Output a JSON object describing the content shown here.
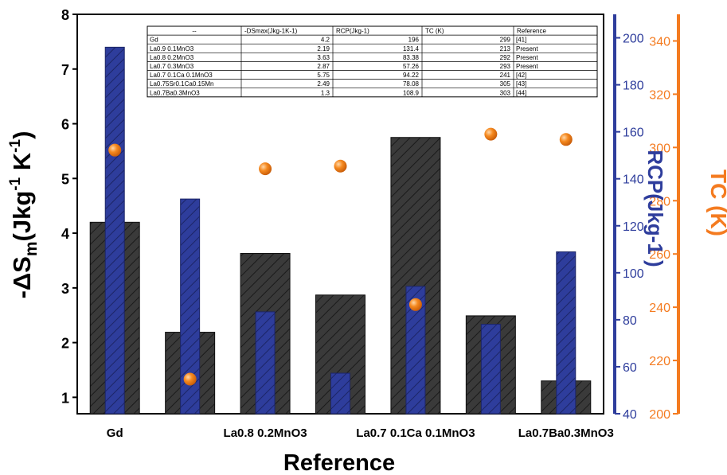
{
  "chart_data": {
    "type": "bar",
    "xlabel": "Reference",
    "categories": [
      "Gd",
      "La0.9 0.1MnO3",
      "La0.8 0.2MnO3",
      "La0.7 0.3MnO3",
      "La0.7 0.1Ca 0.1MnO3",
      "La0.75Sr0.1Ca0.15Mn",
      "La0.7Ba0.3MnO3"
    ],
    "x_tick_labels": [
      {
        "index": 0,
        "text": "Gd"
      },
      {
        "index": 2,
        "text": "La0.8 0.2MnO3"
      },
      {
        "index": 4,
        "text": "La0.7 0.1Ca 0.1MnO3"
      },
      {
        "index": 6,
        "text": "La0.7Ba0.3MnO3"
      }
    ],
    "axes": {
      "left": {
        "label_main": "-ΔS",
        "label_sub": "m",
        "label_rest": "(Jkg",
        "label_sup1": "-1",
        "label_mid": " K",
        "label_sup2": "-1",
        "label_end": ")",
        "range": [
          0.7,
          8
        ],
        "ticks": [
          "1",
          "2",
          "3",
          "4",
          "5",
          "6",
          "7",
          "8"
        ],
        "color": "#000000"
      },
      "right1": {
        "label": "RCP(Jkg-1 )",
        "range": [
          40,
          210
        ],
        "ticks": [
          "40",
          "60",
          "80",
          "100",
          "120",
          "140",
          "160",
          "180",
          "200"
        ],
        "color": "#2e3d9c"
      },
      "right2": {
        "label": "TC (K)",
        "range": [
          200,
          350
        ],
        "ticks": [
          "200",
          "220",
          "240",
          "260",
          "280",
          "300",
          "320",
          "340"
        ],
        "color": "#f47b20"
      }
    },
    "series": [
      {
        "axis": "left",
        "style": "hatched-bar",
        "color": "#2b2b2b",
        "values": [
          4.2,
          2.19,
          3.63,
          2.87,
          5.75,
          2.49,
          1.3
        ]
      },
      {
        "axis": "right1",
        "style": "hatched-bar",
        "color": "#2e3d9c",
        "values": [
          196,
          131.4,
          83.38,
          57.26,
          94.22,
          78.08,
          108.9
        ]
      },
      {
        "axis": "right2",
        "style": "sphere-marker",
        "color": "#f47b20",
        "values": [
          299,
          213,
          292,
          293,
          241,
          305,
          303
        ]
      }
    ],
    "table": {
      "headers": [
        "--",
        "-DSmax(Jkg-1K-1)",
        "RCP(Jkg-1)",
        "TC (K)",
        "Reference"
      ],
      "rows": [
        [
          "Gd",
          "4.2",
          "196",
          "299",
          "[41]"
        ],
        [
          "La0.9 0.1MnO3",
          "2.19",
          "131.4",
          "213",
          "Present"
        ],
        [
          "La0.8 0.2MnO3",
          "3.63",
          "83.38",
          "292",
          "Present"
        ],
        [
          "La0.7 0.3MnO3",
          "2.87",
          "57.26",
          "293",
          "Present"
        ],
        [
          "La0.7 0.1Ca 0.1MnO3",
          "5.75",
          "94.22",
          "241",
          "[42]"
        ],
        [
          "La0.75Sr0.1Ca0.15Mn",
          "2.49",
          "78.08",
          "305",
          "[43]"
        ],
        [
          "La0.7Ba0.3MnO3",
          "1.3",
          "108.9",
          "303",
          "[44]"
        ]
      ]
    }
  }
}
